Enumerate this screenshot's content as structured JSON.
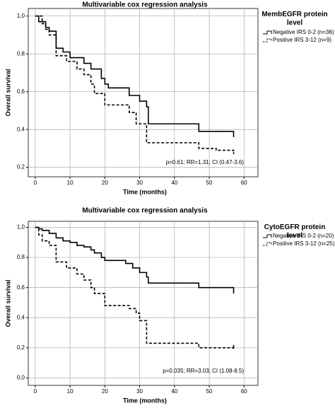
{
  "chart_data": [
    {
      "type": "line",
      "step": true,
      "title": "Multivariable cox regression analysis",
      "x_label": "Time (months)",
      "y_label": "Overall survival",
      "legend_title": "MembEGFR protein level",
      "annotation": "p=0.61; RR=1.31; CI (0.47-3.6)",
      "xlim": [
        -2,
        64
      ],
      "xticks": [
        0,
        10,
        20,
        30,
        40,
        50,
        60
      ],
      "ylim": [
        0.15,
        1.04
      ],
      "yticks": [
        {
          "value": 0.2,
          "label": "0,2"
        },
        {
          "value": 0.4,
          "label": "0,4"
        },
        {
          "value": 0.6,
          "label": "0,6"
        },
        {
          "value": 0.8,
          "label": "0,8"
        },
        {
          "value": 1.0,
          "label": "1,0"
        }
      ],
      "grid": true,
      "series": [
        {
          "name": "Negative IRS 0-2 (n=36)",
          "color": "#000000",
          "dash": false,
          "x": [
            0,
            1,
            3,
            4,
            6,
            8,
            10,
            14,
            16,
            19,
            20,
            21,
            27,
            30,
            32,
            32.5,
            47,
            57
          ],
          "values": [
            1.0,
            0.97,
            0.94,
            0.92,
            0.83,
            0.81,
            0.78,
            0.75,
            0.72,
            0.67,
            0.64,
            0.62,
            0.58,
            0.55,
            0.52,
            0.43,
            0.39,
            0.36
          ]
        },
        {
          "name": "Positive IRS 3-12 (n=9)",
          "color": "#000000",
          "dash": true,
          "x": [
            0,
            2,
            3,
            4,
            6,
            9,
            12,
            14,
            16,
            17,
            20,
            27,
            29,
            32,
            47,
            52,
            57
          ],
          "values": [
            1.0,
            0.96,
            0.93,
            0.9,
            0.79,
            0.76,
            0.72,
            0.69,
            0.64,
            0.59,
            0.53,
            0.49,
            0.43,
            0.33,
            0.3,
            0.29,
            0.27
          ]
        }
      ]
    },
    {
      "type": "line",
      "step": true,
      "title": "Multivariable cox regression analysis",
      "x_label": "Time (months)",
      "y_label": "Overall survival",
      "legend_title": "CytoEGFR protein level",
      "annotation": "p=0.035; RR=3.03; CI (1.08-8.5)",
      "xlim": [
        -2,
        64
      ],
      "xticks": [
        0,
        10,
        20,
        30,
        40,
        50,
        60
      ],
      "ylim": [
        -0.05,
        1.04
      ],
      "yticks": [
        {
          "value": 0.0,
          "label": "0,0"
        },
        {
          "value": 0.2,
          "label": "0,2"
        },
        {
          "value": 0.4,
          "label": "0,4"
        },
        {
          "value": 0.6,
          "label": "0,6"
        },
        {
          "value": 0.8,
          "label": "0,8"
        },
        {
          "value": 1.0,
          "label": "1,0"
        }
      ],
      "grid": true,
      "series": [
        {
          "name": "Negative IRS 0-2 (n=20)",
          "color": "#000000",
          "dash": false,
          "x": [
            0,
            1,
            2,
            4,
            6,
            8,
            10,
            12,
            14,
            16,
            17,
            19,
            20,
            26,
            28,
            30,
            32,
            32.5,
            47,
            57
          ],
          "values": [
            1.0,
            0.99,
            0.98,
            0.96,
            0.93,
            0.91,
            0.9,
            0.88,
            0.87,
            0.85,
            0.83,
            0.8,
            0.78,
            0.76,
            0.73,
            0.7,
            0.67,
            0.63,
            0.6,
            0.56
          ]
        },
        {
          "name": "Positive IRS 3-12 (n=25)",
          "color": "#000000",
          "dash": true,
          "x": [
            0,
            1,
            2,
            4,
            6,
            9,
            12,
            14,
            16,
            17,
            20,
            27,
            29,
            30,
            32,
            47,
            57
          ],
          "values": [
            1.0,
            0.95,
            0.91,
            0.88,
            0.77,
            0.73,
            0.69,
            0.65,
            0.6,
            0.56,
            0.48,
            0.46,
            0.43,
            0.38,
            0.23,
            0.2,
            0.19
          ]
        }
      ]
    }
  ]
}
